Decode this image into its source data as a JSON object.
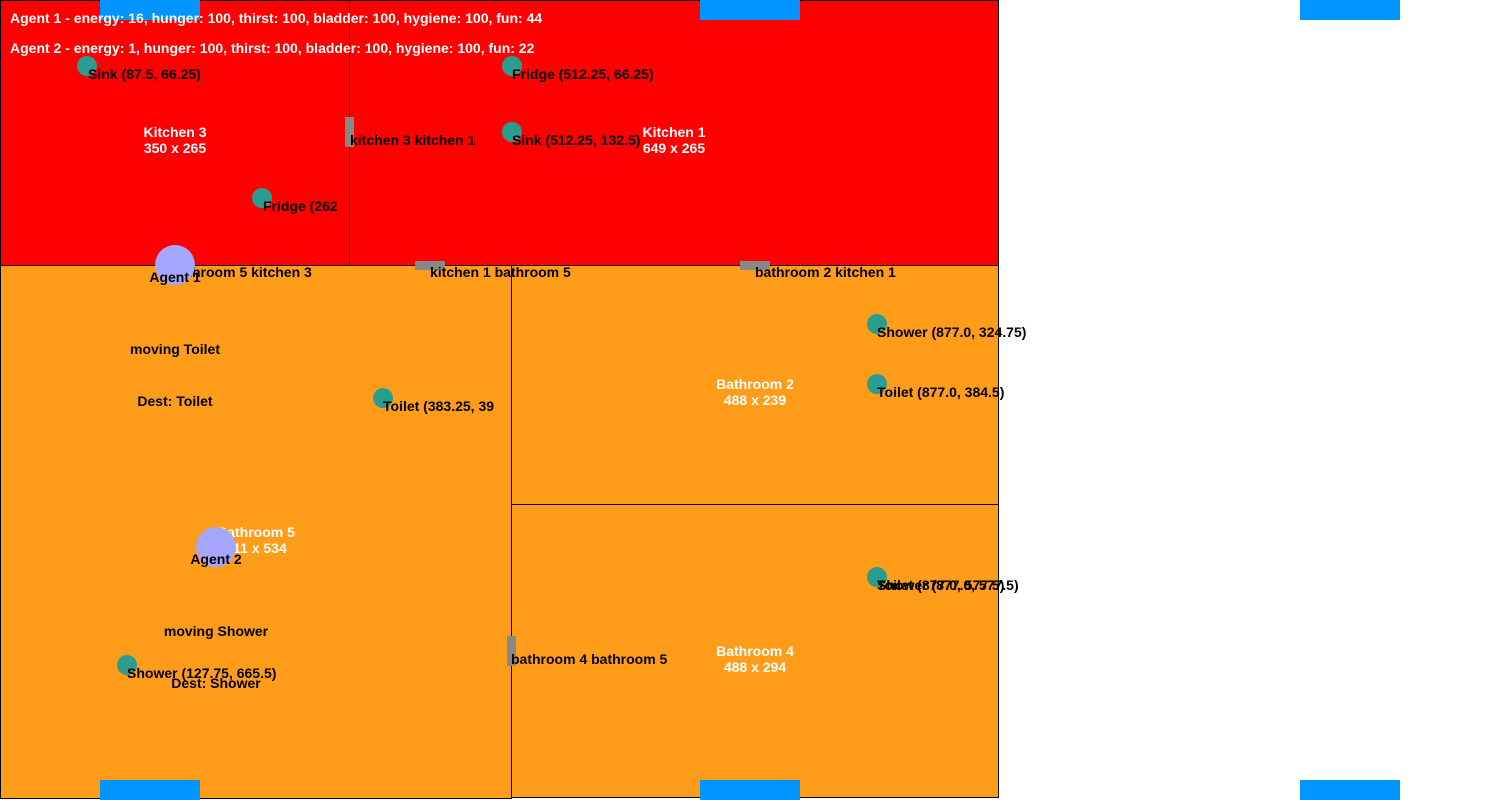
{
  "colors": {
    "kitchen": "#ff0000",
    "bathroom": "#ff9c1a",
    "window": "#0095ff",
    "door": "#888888",
    "object": "#2a9d8f",
    "agent": "#a6a6ff"
  },
  "status": {
    "agent1": "Agent 1 - energy: 16, hunger: 100, thirst: 100, bladder: 100, hygiene: 100, fun: 44",
    "agent2": "Agent 2 - energy: 1, hunger: 100, thirst: 100, bladder: 100, hygiene: 100, fun: 22"
  },
  "rooms": {
    "kitchen3": {
      "name": "Kitchen 3",
      "size": "350 x 265"
    },
    "kitchen1": {
      "name": "Kitchen 1",
      "size": "649 x 265"
    },
    "bathroom5": {
      "name": "Bathroom 5",
      "size": "511 x 534"
    },
    "bathroom2": {
      "name": "Bathroom 2",
      "size": "488 x 239"
    },
    "bathroom4": {
      "name": "Bathroom 4",
      "size": "488 x 294"
    }
  },
  "doors": {
    "k3_k1": "kitchen 3 kitchen 1",
    "b5_k3": "bathroom 5 kitchen 3",
    "k1_b5": "kitchen 1 bathroom 5",
    "b2_k1": "bathroom 2 kitchen 1",
    "b4_b5": "bathroom 4 bathroom 5"
  },
  "objects": {
    "sink_k3": "Sink (87.5, 66.25)",
    "fridge_k3": "Fridge (262",
    "fridge_k1": "Fridge (512.25, 66.25)",
    "sink_k1": "Sink (512.25, 132.5)",
    "toilet_b5": "Toilet (383.25, 39",
    "shower_b5": "Shower (127.75, 665.5)",
    "shower_b2": "Shower (877.0, 324.75)",
    "toilet_b2": "Toilet (877.0, 384.5)",
    "toilet_b4": "Toilet (877.0, 577.5)",
    "shower_b4": "Shower (877.0, 577.5)"
  },
  "agents": {
    "a1": {
      "name": "Agent 1",
      "action": "moving Toilet",
      "dest": "Dest: Toilet"
    },
    "a2": {
      "name": "Agent 2",
      "action": "moving Shower",
      "dest": "Dest: Shower"
    }
  }
}
